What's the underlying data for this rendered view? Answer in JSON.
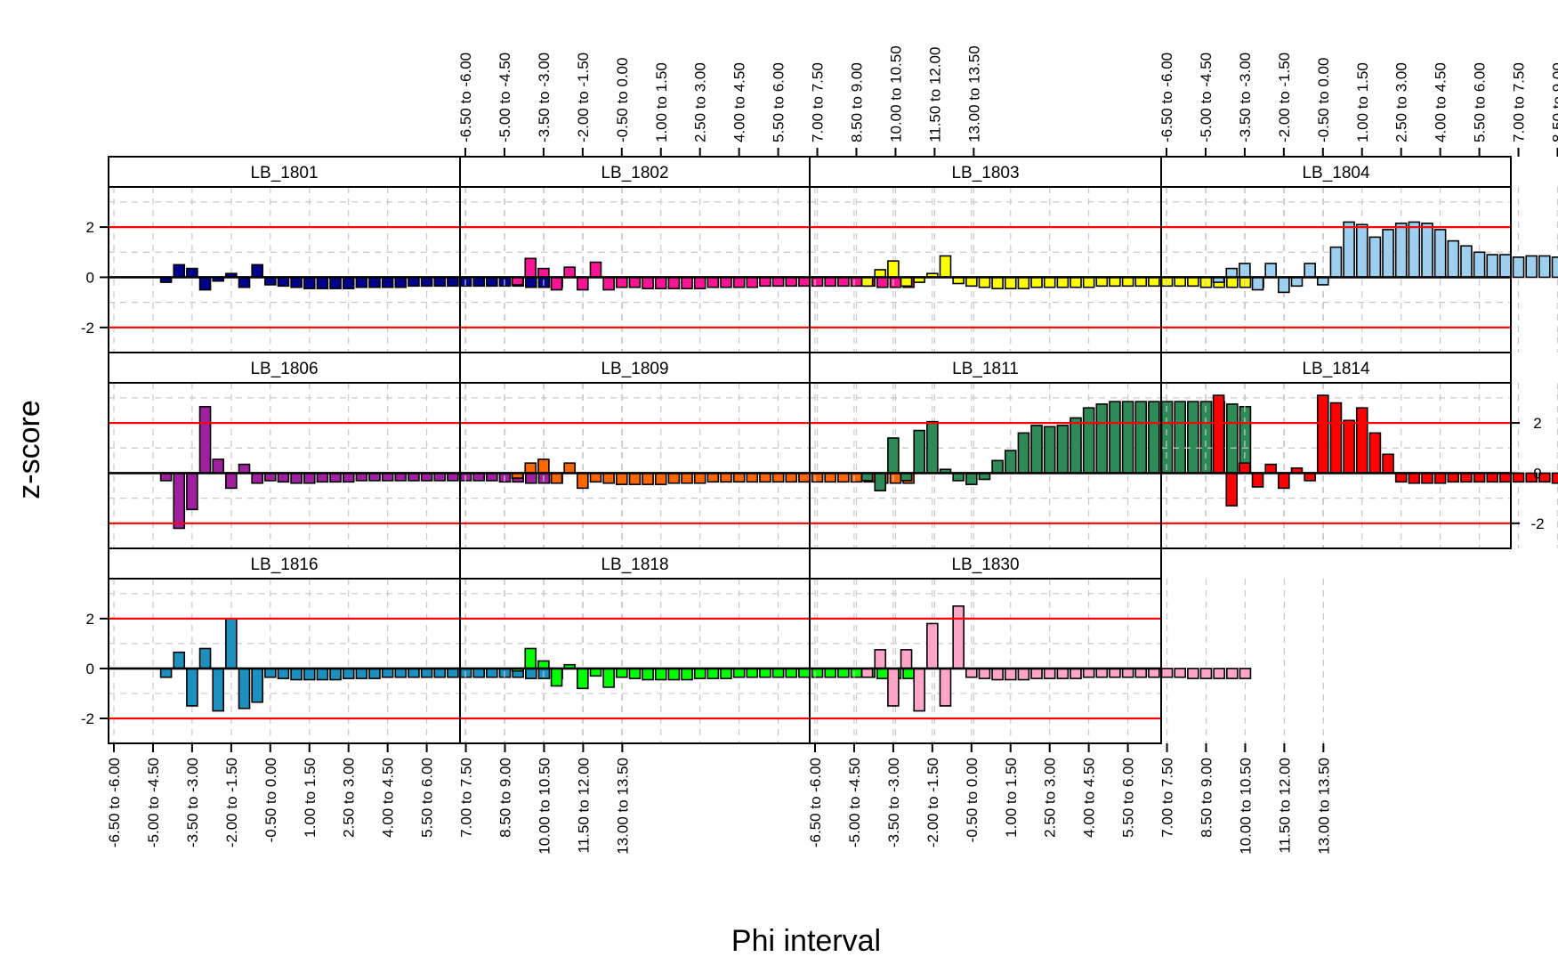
{
  "chart_data": {
    "type": "bar",
    "xlabel": "Phi interval",
    "ylabel": "z-score",
    "ylim": [
      -3.0,
      3.6
    ],
    "y_ticks": [
      -2,
      0,
      2
    ],
    "threshold_lines": [
      -2,
      2
    ],
    "categories": [
      "-6.50 to -6.00",
      "-6.00 to -5.50",
      "-5.50 to -5.00",
      "-5.00 to -4.50",
      "-4.50 to -4.00",
      "-4.00 to -3.50",
      "-3.50 to -3.00",
      "-3.00 to -2.50",
      "-2.50 to -2.00",
      "-2.00 to -1.50",
      "-1.50 to -1.00",
      "-1.00 to -0.50",
      "-0.50 to 0.00",
      "0.00 to 0.50",
      "0.50 to 1.00",
      "1.00 to 1.50",
      "1.50 to 2.00",
      "2.00 to 2.50",
      "2.50 to 3.00",
      "3.00 to 3.50",
      "3.50 to 4.00",
      "4.00 to 4.50",
      "4.50 to 5.00",
      "5.00 to 5.50",
      "5.50 to 6.00",
      "6.00 to 6.50",
      "6.50 to 7.00",
      "7.00 to 7.50",
      "7.50 to 8.00",
      "8.00 to 8.50",
      "8.50 to 9.00",
      "9.00 to 9.50",
      "9.50 to 10.00",
      "10.00 to 10.50",
      "10.50 to 11.00",
      "11.00 to 11.50",
      "11.50 to 12.00",
      "12.00 to 12.50",
      "12.50 to 13.00",
      "13.00 to 13.50"
    ],
    "tick_labels": [
      "-6.50 to -6.00",
      "-5.00 to -4.50",
      "-3.50 to -3.00",
      "-2.00 to -1.50",
      "-0.50 to 0.00",
      "1.00 to 1.50",
      "2.50 to 3.00",
      "4.00 to 4.50",
      "5.50 to 6.00",
      "7.00 to 7.50",
      "8.50 to 9.00",
      "10.00 to 10.50",
      "11.50 to 12.00",
      "13.00 to 13.50"
    ],
    "series": [
      {
        "name": "LB_1801",
        "color": "#00008b",
        "values": [
          null,
          null,
          null,
          null,
          -0.2,
          0.5,
          0.35,
          -0.5,
          -0.15,
          0.15,
          -0.4,
          0.5,
          -0.3,
          -0.35,
          -0.4,
          -0.45,
          -0.45,
          -0.45,
          -0.45,
          -0.4,
          -0.4,
          -0.4,
          -0.4,
          -0.35,
          -0.35,
          -0.35,
          -0.35,
          -0.35,
          -0.35,
          -0.35,
          -0.35,
          -0.35,
          -0.4,
          -0.4,
          -0.4,
          null,
          null,
          null,
          null,
          null
        ]
      },
      {
        "name": "LB_1802",
        "color": "#ff1493",
        "values": [
          null,
          null,
          null,
          null,
          -0.3,
          0.75,
          0.35,
          -0.5,
          0.4,
          -0.5,
          0.6,
          -0.5,
          -0.4,
          -0.4,
          -0.45,
          -0.45,
          -0.45,
          -0.45,
          -0.45,
          -0.4,
          -0.4,
          -0.4,
          -0.4,
          -0.35,
          -0.35,
          -0.35,
          -0.35,
          -0.35,
          -0.35,
          -0.35,
          -0.35,
          -0.35,
          -0.4,
          -0.4,
          -0.4,
          null,
          null,
          null,
          null,
          null
        ]
      },
      {
        "name": "LB_1803",
        "color": "#ffff00",
        "values": [
          null,
          null,
          null,
          null,
          -0.35,
          0.3,
          0.65,
          -0.35,
          -0.2,
          0.15,
          0.85,
          -0.25,
          -0.35,
          -0.4,
          -0.45,
          -0.45,
          -0.45,
          -0.4,
          -0.4,
          -0.4,
          -0.4,
          -0.4,
          -0.35,
          -0.35,
          -0.35,
          -0.35,
          -0.35,
          -0.35,
          -0.35,
          -0.35,
          -0.4,
          -0.4,
          -0.4,
          -0.4,
          -0.4,
          null,
          null,
          null,
          null,
          null
        ]
      },
      {
        "name": "LB_1804",
        "color": "#9fcfef",
        "values": [
          null,
          null,
          null,
          null,
          -0.2,
          0.35,
          0.55,
          -0.5,
          0.55,
          -0.6,
          -0.35,
          0.55,
          -0.3,
          1.2,
          2.2,
          2.1,
          1.6,
          1.9,
          2.15,
          2.2,
          2.15,
          1.9,
          1.45,
          1.25,
          1.0,
          0.9,
          0.9,
          0.8,
          0.85,
          0.85,
          0.8,
          0.8,
          0.85,
          1.0,
          1.1,
          1.25,
          null,
          null,
          null,
          null
        ]
      },
      {
        "name": "LB_1806",
        "color": "#a020a0",
        "values": [
          null,
          null,
          null,
          null,
          -0.3,
          -2.2,
          -1.45,
          2.65,
          0.55,
          -0.6,
          0.35,
          -0.4,
          -0.3,
          -0.35,
          -0.4,
          -0.4,
          -0.35,
          -0.35,
          -0.35,
          -0.3,
          -0.3,
          -0.3,
          -0.3,
          -0.3,
          -0.3,
          -0.3,
          -0.3,
          -0.3,
          -0.3,
          -0.3,
          -0.35,
          -0.35,
          -0.4,
          -0.4,
          -0.4,
          null,
          null,
          null,
          null,
          null
        ]
      },
      {
        "name": "LB_1809",
        "color": "#ff6600",
        "values": [
          null,
          null,
          null,
          null,
          -0.2,
          0.4,
          0.55,
          -0.4,
          0.4,
          -0.6,
          -0.35,
          -0.4,
          -0.45,
          -0.45,
          -0.45,
          -0.45,
          -0.4,
          -0.4,
          -0.4,
          -0.35,
          -0.35,
          -0.35,
          -0.35,
          -0.35,
          -0.35,
          -0.35,
          -0.35,
          -0.35,
          -0.35,
          -0.35,
          -0.35,
          -0.35,
          -0.4,
          -0.4,
          -0.4,
          null,
          null,
          null,
          null,
          null
        ]
      },
      {
        "name": "LB_1811",
        "color": "#2e8b57",
        "values": [
          null,
          null,
          null,
          null,
          -0.3,
          -0.7,
          1.4,
          -0.3,
          1.7,
          2.05,
          0.15,
          -0.3,
          -0.45,
          -0.25,
          0.5,
          0.9,
          1.6,
          1.9,
          1.85,
          1.9,
          2.2,
          2.6,
          2.75,
          2.85,
          2.85,
          2.85,
          2.85,
          2.85,
          2.85,
          2.85,
          2.85,
          2.85,
          2.75,
          2.65,
          null,
          null,
          null,
          null,
          null,
          null
        ]
      },
      {
        "name": "LB_1814",
        "color": "#ff0000",
        "values": [
          null,
          null,
          null,
          null,
          3.1,
          -1.3,
          0.4,
          -0.55,
          0.35,
          -0.6,
          0.2,
          -0.3,
          3.1,
          2.8,
          2.1,
          2.6,
          1.6,
          0.75,
          -0.35,
          -0.4,
          -0.4,
          -0.4,
          -0.35,
          -0.35,
          -0.35,
          -0.35,
          -0.35,
          -0.35,
          -0.35,
          -0.35,
          -0.4,
          -0.4,
          -0.4,
          null,
          null,
          null,
          null,
          null,
          null,
          null
        ]
      },
      {
        "name": "LB_1816",
        "color": "#1e90bf",
        "values": [
          null,
          null,
          null,
          null,
          -0.35,
          0.65,
          -1.5,
          0.8,
          -1.7,
          2.0,
          -1.6,
          -1.35,
          -0.35,
          -0.4,
          -0.45,
          -0.45,
          -0.45,
          -0.45,
          -0.4,
          -0.4,
          -0.4,
          -0.35,
          -0.35,
          -0.35,
          -0.35,
          -0.35,
          -0.35,
          -0.35,
          -0.35,
          -0.35,
          -0.35,
          -0.35,
          -0.4,
          -0.4,
          -0.4,
          null,
          null,
          null,
          null,
          null
        ]
      },
      {
        "name": "LB_1818",
        "color": "#00ff00",
        "values": [
          null,
          null,
          null,
          null,
          -0.1,
          0.8,
          0.3,
          -0.7,
          0.15,
          -0.8,
          -0.3,
          -0.75,
          -0.35,
          -0.4,
          -0.45,
          -0.45,
          -0.45,
          -0.45,
          -0.4,
          -0.4,
          -0.4,
          -0.35,
          -0.35,
          -0.35,
          -0.35,
          -0.35,
          -0.35,
          -0.35,
          -0.35,
          -0.35,
          -0.35,
          -0.35,
          -0.4,
          -0.4,
          -0.4,
          null,
          null,
          null,
          null,
          null
        ]
      },
      {
        "name": "LB_1830",
        "color": "#ffa5c8",
        "values": [
          null,
          null,
          null,
          null,
          -0.35,
          0.75,
          -1.5,
          0.75,
          -1.7,
          1.8,
          -1.5,
          2.5,
          -0.35,
          -0.4,
          -0.45,
          -0.45,
          -0.45,
          -0.4,
          -0.4,
          -0.4,
          -0.4,
          -0.35,
          -0.35,
          -0.35,
          -0.35,
          -0.35,
          -0.35,
          -0.35,
          -0.35,
          -0.4,
          -0.4,
          -0.4,
          -0.4,
          -0.4,
          null,
          null,
          null,
          null,
          null,
          null
        ]
      }
    ],
    "grid": true,
    "grid_style": "dashed",
    "layout": "4 columns x 3 rows (lattice panels)",
    "colors": {
      "threshold": "#ff0000",
      "zero_line": "#000000",
      "grid": "#c8c8c8",
      "bar_border": "#000000"
    }
  }
}
